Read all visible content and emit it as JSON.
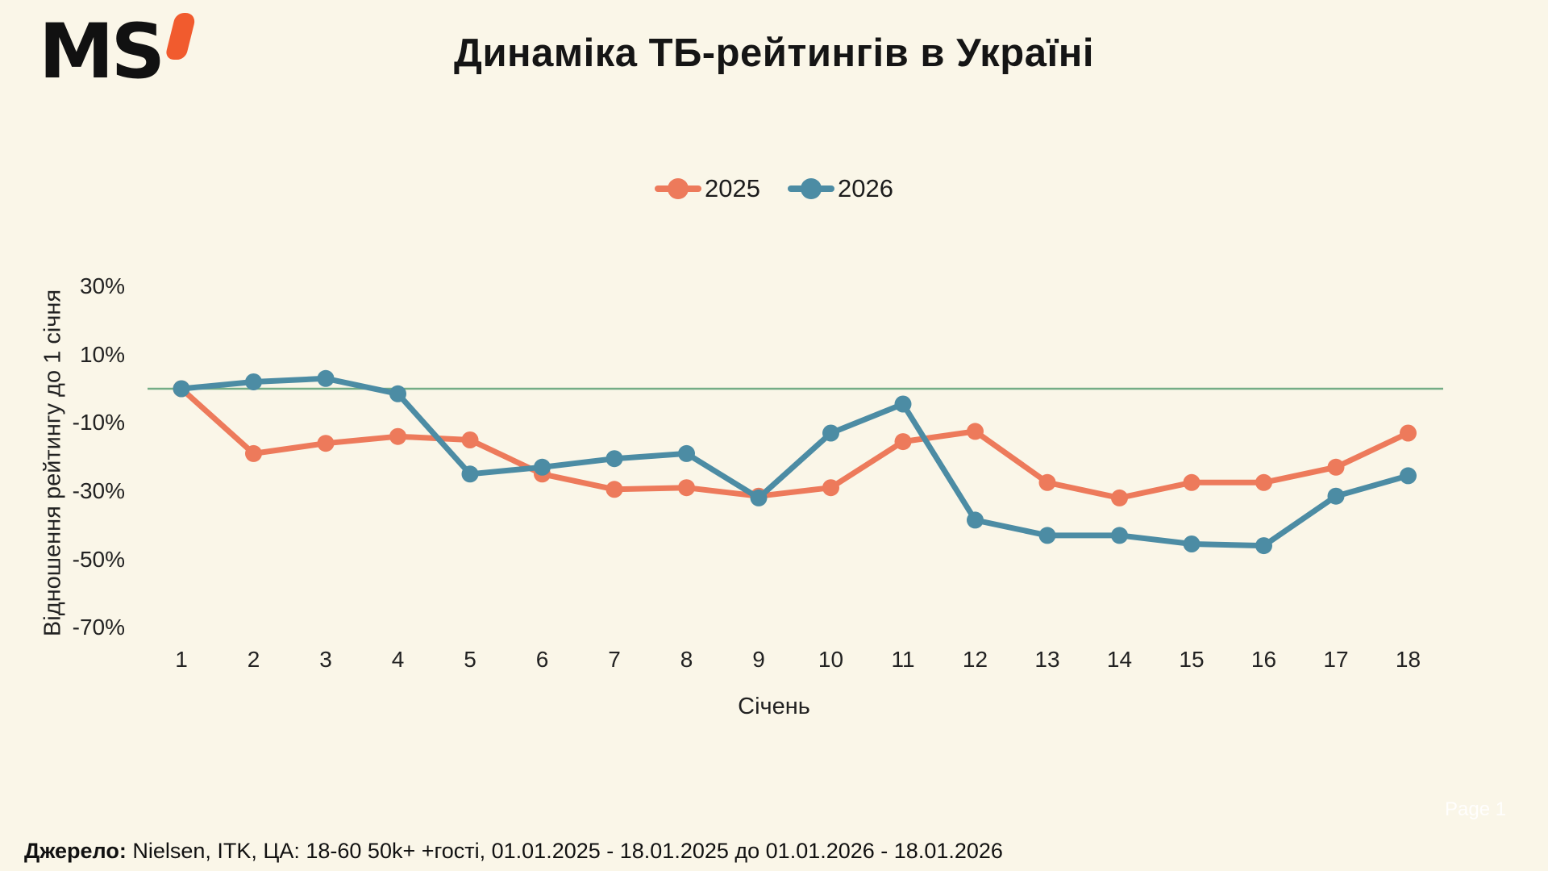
{
  "logo": {
    "text": "MS"
  },
  "title": "Динаміка ТБ-рейтингів в Україні",
  "colors": {
    "background": "#FAF6E8",
    "series_2025": "#ED7A5B",
    "series_2026": "#4C8CA4",
    "zero_line": "#74AD86",
    "logo_accent": "#F15B2E",
    "text": "#1C1C1C"
  },
  "legend": [
    {
      "label": "2025",
      "color": "#ED7A5B"
    },
    {
      "label": "2026",
      "color": "#4C8CA4"
    }
  ],
  "chart_data": {
    "type": "line",
    "x": [
      1,
      2,
      3,
      4,
      5,
      6,
      7,
      8,
      9,
      10,
      11,
      12,
      13,
      14,
      15,
      16,
      17,
      18
    ],
    "series": [
      {
        "name": "2025",
        "color": "#ED7A5B",
        "values": [
          0,
          -19,
          -16,
          -14,
          -15,
          -25,
          -29.5,
          -29,
          -31.5,
          -29,
          -15.5,
          -12.5,
          -27.5,
          -32,
          -27.5,
          -27.5,
          -23,
          -13
        ]
      },
      {
        "name": "2026",
        "color": "#4C8CA4",
        "values": [
          0,
          2,
          3,
          -1.5,
          -25,
          -23,
          -20.5,
          -19,
          -32,
          -13,
          -4.5,
          -38.5,
          -43,
          -43,
          -45.5,
          -46,
          -31.5,
          -25.5
        ]
      }
    ],
    "xlabel": "Січень",
    "ylabel": "Відношення рейтингу до 1 січня",
    "yticks": [
      30,
      10,
      -10,
      -30,
      -50,
      -70
    ],
    "ytick_labels": [
      "30%",
      "10%",
      "-10%",
      "-30%",
      "-50%",
      "-70%"
    ],
    "ylim": [
      -75,
      35
    ],
    "zero_line": {
      "value": 0,
      "color": "#74AD86"
    },
    "grid": false,
    "legend_position": "top-center"
  },
  "footer": {
    "source_label": "Джерело:",
    "source_text": " Nielsen, ITK, ЦА: 18-60 50k+ +гості, 01.01.2025 - 18.01.2025 до 01.01.2026 - 18.01.2026",
    "page_label": "Page 1"
  }
}
